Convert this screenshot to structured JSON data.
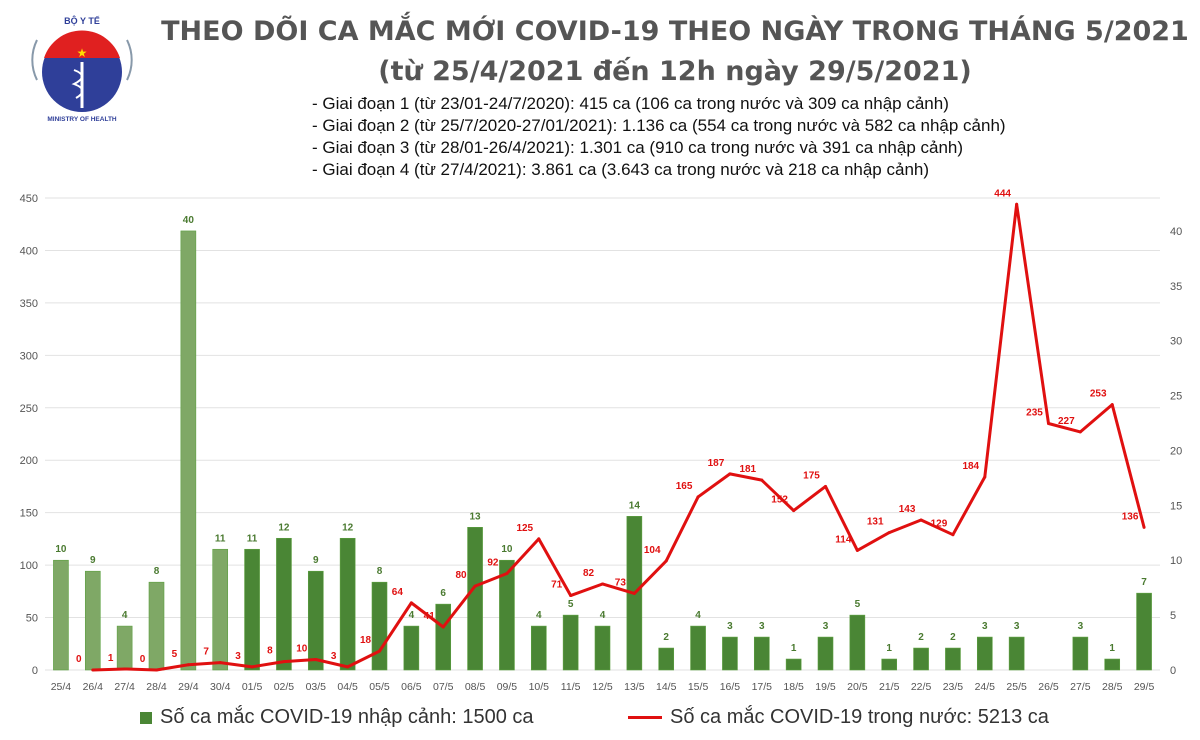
{
  "title": "THEO DÕI CA MẮC MỚI COVID-19 THEO NGÀY TRONG THÁNG 5/2021",
  "subtitle": "(từ 25/4/2021 đến 12h ngày 29/5/2021)",
  "notes": [
    "- Giai đoạn 1 (từ 23/01-24/7/2020): 415 ca (106 ca trong nước và 309 ca nhập cảnh)",
    "- Giai đoạn 2 (từ 25/7/2020-27/01/2021): 1.136 ca (554 ca trong nước và 582 ca nhập cảnh)",
    "- Giai đoạn 3 (từ 28/01-26/4/2021): 1.301 ca (910 ca trong nước và 391 ca nhập cảnh)",
    "- Giai đoạn 4 (từ 27/4/2021): 3.861 ca (3.643 ca trong nước và 218 ca nhập cảnh)"
  ],
  "logo": {
    "top_text": "BỘ Y TẾ",
    "bottom_text": "MINISTRY OF HEALTH"
  },
  "colors": {
    "bar_light": "#7fa866",
    "bar_dark": "#4a8635",
    "line": "#e01010",
    "bar_label": "#4a7a30"
  },
  "chart_data": {
    "type": "bar+line",
    "categories": [
      "25/4",
      "26/4",
      "27/4",
      "28/4",
      "29/4",
      "30/4",
      "01/5",
      "02/5",
      "03/5",
      "04/5",
      "05/5",
      "06/5",
      "07/5",
      "08/5",
      "09/5",
      "10/5",
      "11/5",
      "12/5",
      "13/5",
      "14/5",
      "15/5",
      "16/5",
      "17/5",
      "18/5",
      "19/5",
      "20/5",
      "21/5",
      "22/5",
      "23/5",
      "24/5",
      "25/5",
      "26/5",
      "27/5",
      "28/5",
      "29/5"
    ],
    "series": [
      {
        "name": "Số ca mắc COVID-19 nhập cảnh: 1500 ca",
        "type": "bar",
        "axis": "right",
        "values": [
          10,
          9,
          4,
          8,
          40,
          11,
          11,
          12,
          9,
          12,
          8,
          4,
          6,
          13,
          10,
          4,
          5,
          4,
          14,
          2,
          4,
          3,
          3,
          1,
          3,
          5,
          1,
          2,
          2,
          3,
          3,
          null,
          3,
          1,
          7
        ]
      },
      {
        "name": "Số ca mắc COVID-19 trong nước: 5213 ca",
        "type": "line",
        "axis": "left",
        "values": [
          null,
          0,
          1,
          0,
          5,
          7,
          3,
          8,
          10,
          3,
          18,
          64,
          41,
          80,
          92,
          125,
          71,
          82,
          73,
          104,
          165,
          187,
          181,
          152,
          175,
          114,
          131,
          143,
          129,
          184,
          444,
          235,
          227,
          253,
          136
        ]
      }
    ],
    "left_axis": {
      "range": [
        0,
        450
      ],
      "ticks": [
        0,
        50,
        100,
        150,
        200,
        250,
        300,
        350,
        400,
        450
      ]
    },
    "right_axis": {
      "range": [
        0,
        43
      ],
      "ticks": [
        0,
        5,
        10,
        15,
        20,
        25,
        30,
        35,
        40
      ]
    },
    "grid": true,
    "legend": "bottom"
  }
}
